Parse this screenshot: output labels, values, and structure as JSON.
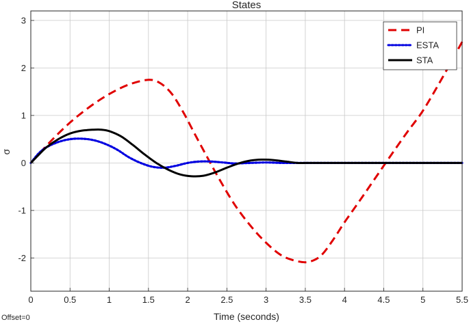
{
  "chart_data": {
    "type": "line",
    "title": "States",
    "xlabel": "Time (seconds)",
    "ylabel": "σ",
    "xlim": [
      0,
      5.5
    ],
    "ylim": [
      -2.7,
      3.2
    ],
    "xticks": [
      0,
      0.5,
      1,
      1.5,
      2,
      2.5,
      3,
      3.5,
      4,
      4.5,
      5,
      5.5
    ],
    "xtick_labels": [
      "0",
      "0.5",
      "1",
      "1.5",
      "2",
      "2.5",
      "3",
      "3.5",
      "4",
      "4.5",
      "5",
      "5.5"
    ],
    "yticks": [
      -2,
      -1,
      0,
      1,
      2,
      3
    ],
    "ytick_labels": [
      "-2",
      "-1",
      "0",
      "1",
      "2",
      "3"
    ],
    "grid": true,
    "legend_position": "top-right",
    "series": [
      {
        "name": "PI",
        "color": "#e00000",
        "style": "dashed",
        "x": [
          0,
          0.25,
          0.5,
          0.75,
          1.0,
          1.25,
          1.5,
          1.65,
          1.8,
          1.95,
          2.1,
          2.25,
          2.4,
          2.6,
          2.8,
          3.0,
          3.2,
          3.4,
          3.55,
          3.7,
          3.85,
          4.0,
          4.2,
          4.4,
          4.6,
          4.8,
          5.0,
          5.25,
          5.5
        ],
        "y": [
          0,
          0.45,
          0.85,
          1.18,
          1.45,
          1.65,
          1.75,
          1.68,
          1.45,
          1.05,
          0.58,
          0.12,
          -0.33,
          -0.88,
          -1.32,
          -1.68,
          -1.95,
          -2.07,
          -2.08,
          -1.95,
          -1.63,
          -1.25,
          -0.78,
          -0.3,
          0.18,
          0.65,
          1.1,
          1.8,
          2.55
        ]
      },
      {
        "name": "ESTA",
        "color": "#0000e0",
        "style": "dotted",
        "x": [
          0,
          0.1,
          0.2,
          0.35,
          0.5,
          0.65,
          0.8,
          0.95,
          1.1,
          1.25,
          1.4,
          1.55,
          1.7,
          1.85,
          2.0,
          2.15,
          2.3,
          2.45,
          2.6,
          2.8,
          3.0,
          3.2,
          3.4,
          3.6,
          4.0,
          5.5
        ],
        "y": [
          0,
          0.2,
          0.33,
          0.44,
          0.5,
          0.51,
          0.48,
          0.4,
          0.28,
          0.12,
          0.0,
          -0.08,
          -0.1,
          -0.06,
          0.0,
          0.03,
          0.03,
          0.01,
          -0.01,
          0.0,
          0.01,
          0.0,
          0.0,
          0.0,
          0.0,
          0.0
        ]
      },
      {
        "name": "STA",
        "color": "#000000",
        "style": "solid",
        "x": [
          0,
          0.1,
          0.2,
          0.35,
          0.5,
          0.65,
          0.8,
          0.9,
          1.0,
          1.15,
          1.3,
          1.45,
          1.6,
          1.75,
          1.9,
          2.05,
          2.2,
          2.35,
          2.5,
          2.65,
          2.8,
          2.95,
          3.1,
          3.25,
          3.4,
          3.5,
          3.6,
          4.0,
          5.5
        ],
        "y": [
          0,
          0.17,
          0.33,
          0.5,
          0.62,
          0.68,
          0.7,
          0.7,
          0.67,
          0.56,
          0.38,
          0.18,
          0.0,
          -0.14,
          -0.24,
          -0.28,
          -0.27,
          -0.2,
          -0.1,
          -0.01,
          0.05,
          0.07,
          0.06,
          0.03,
          0.0,
          0.0,
          0.0,
          0.0,
          0.0
        ]
      }
    ]
  },
  "footer": {
    "offset_note": "Offset=0"
  }
}
